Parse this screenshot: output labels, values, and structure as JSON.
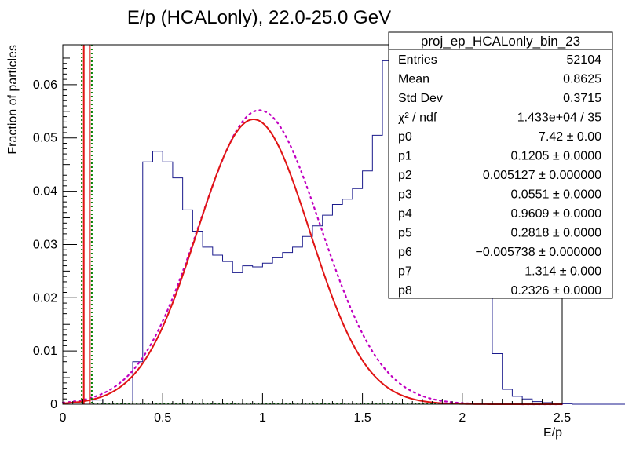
{
  "chart_data": {
    "type": "line",
    "title": "E/p (HCALonly), 22.0-25.0 GeV",
    "xlabel": "E/p",
    "ylabel": "Fraction of particles",
    "xlim": [
      0,
      2.5
    ],
    "ylim": [
      0,
      0.0675
    ],
    "x_ticks": [
      "0",
      "0.5",
      "1",
      "1.5",
      "2",
      "2.5"
    ],
    "y_ticks": [
      "0",
      "0.01",
      "0.02",
      "0.03",
      "0.04",
      "0.05",
      "0.06"
    ],
    "grid": false,
    "colors": {
      "histogram": "#1a1a8c",
      "fit": "#e01414",
      "component": "#c000c0",
      "marker": "#008000"
    },
    "histogram": {
      "bin_width": 0.05,
      "x_start": 0.0,
      "values": [
        0.0,
        0.0,
        0.0,
        0.0008,
        0.0,
        0.0,
        0.0,
        0.008,
        0.0455,
        0.0475,
        0.0455,
        0.0425,
        0.0365,
        0.0325,
        0.0295,
        0.028,
        0.0268,
        0.0247,
        0.026,
        0.0258,
        0.0265,
        0.0275,
        0.0285,
        0.0295,
        0.0315,
        0.0335,
        0.0355,
        0.0375,
        0.0385,
        0.0405,
        0.0438,
        0.0505,
        0.0645,
        0.0595,
        0.0535,
        0.0505,
        0.0495,
        0.0485,
        0.0505,
        0.0488,
        0.0445,
        0.0368,
        0.0255,
        0.0095,
        0.0028,
        0.0015,
        0.001,
        0.0005,
        0.0003,
        0.0002,
        0.0001,
        0.0,
        0.0,
        0.0,
        0.0,
        0.0,
        0.0,
        0.0,
        0.0,
        0.0,
        0.0,
        0.0,
        0.0,
        0.0,
        0.0,
        0.0,
        0.0,
        0.0,
        0.0,
        0.0,
        0.0,
        0.0,
        0.0,
        0.0,
        0.0,
        0.0,
        0.0,
        0.0,
        0.0,
        0.0,
        0.0,
        0.0,
        0.0,
        0.0,
        0.0,
        0.0,
        0.0,
        0.0,
        0.0,
        0.0,
        0.0,
        0.0,
        0.0,
        0.0,
        0.0,
        0.0,
        0.0,
        0.0,
        0.0,
        0.0
      ]
    },
    "fit_curve": {
      "gauss_amplitude": 0.0535,
      "gauss_mean": 0.955,
      "gauss_sigma": 0.2818,
      "baseline": 0.0
    },
    "component_curve": {
      "gauss_amplitude": 0.0552,
      "gauss_mean": 0.985,
      "gauss_sigma": 0.305
    },
    "marker_lines": [
      {
        "x": 0.095,
        "style": "dotted",
        "color": "#008000"
      },
      {
        "x": 0.105,
        "style": "solid",
        "color": "#e01414"
      },
      {
        "x": 0.135,
        "style": "solid",
        "color": "#e01414"
      },
      {
        "x": 0.145,
        "style": "dotted",
        "color": "#008000"
      }
    ],
    "stats_box": {
      "title": "proj_ep_HCALonly_bin_23",
      "rows": [
        {
          "label": "Entries",
          "value": "52104"
        },
        {
          "label": "Mean",
          "value": "0.8625"
        },
        {
          "label": "Std Dev",
          "value": "0.3715"
        },
        {
          "label": "χ² / ndf",
          "value": "1.433e+04 / 35"
        },
        {
          "label": "p0",
          "value": "7.42 ± 0.00"
        },
        {
          "label": "p1",
          "value": "0.1205 ± 0.0000"
        },
        {
          "label": "p2",
          "value": "0.005127 ± 0.000000"
        },
        {
          "label": "p3",
          "value": "0.0551 ± 0.0000"
        },
        {
          "label": "p4",
          "value": "0.9609 ± 0.0000"
        },
        {
          "label": "p5",
          "value": "0.2818 ± 0.0000"
        },
        {
          "label": "p6",
          "value": "−0.005738 ± 0.000000"
        },
        {
          "label": "p7",
          "value": "1.314 ± 0.000"
        },
        {
          "label": "p8",
          "value": "0.2326 ± 0.0000"
        }
      ]
    }
  }
}
